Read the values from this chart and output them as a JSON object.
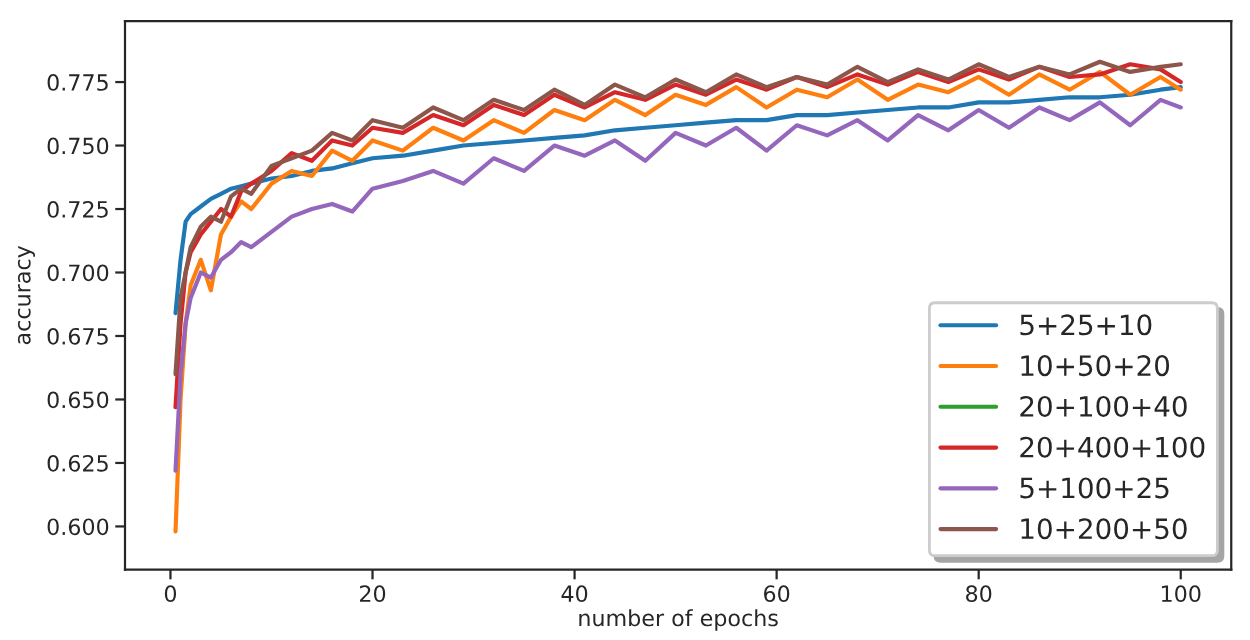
{
  "chart_data": {
    "type": "line",
    "xlabel": "number of epochs",
    "ylabel": "accuracy",
    "x": [
      0.5,
      1,
      1.5,
      2,
      3,
      4,
      5,
      6,
      7,
      8,
      10,
      12,
      14,
      16,
      18,
      20,
      23,
      26,
      29,
      32,
      35,
      38,
      41,
      44,
      47,
      50,
      53,
      56,
      59,
      62,
      65,
      68,
      71,
      74,
      77,
      80,
      83,
      86,
      89,
      92,
      95,
      98,
      100
    ],
    "series": [
      {
        "name": "5+25+10",
        "color": "#1f77b4",
        "values": [
          0.684,
          0.705,
          0.72,
          0.723,
          0.726,
          0.729,
          0.731,
          0.733,
          0.734,
          0.735,
          0.737,
          0.738,
          0.74,
          0.741,
          0.743,
          0.745,
          0.746,
          0.748,
          0.75,
          0.751,
          0.752,
          0.753,
          0.754,
          0.756,
          0.757,
          0.758,
          0.759,
          0.76,
          0.76,
          0.762,
          0.762,
          0.763,
          0.764,
          0.765,
          0.765,
          0.767,
          0.767,
          0.768,
          0.769,
          0.769,
          0.77,
          0.772,
          0.773
        ]
      },
      {
        "name": "10+50+20",
        "color": "#ff7f0e",
        "values": [
          0.598,
          0.65,
          0.68,
          0.695,
          0.705,
          0.693,
          0.715,
          0.722,
          0.728,
          0.725,
          0.735,
          0.74,
          0.738,
          0.748,
          0.744,
          0.752,
          0.748,
          0.757,
          0.752,
          0.76,
          0.755,
          0.764,
          0.76,
          0.768,
          0.762,
          0.77,
          0.766,
          0.773,
          0.765,
          0.772,
          0.769,
          0.776,
          0.768,
          0.774,
          0.771,
          0.777,
          0.77,
          0.778,
          0.772,
          0.779,
          0.77,
          0.777,
          0.772
        ]
      },
      {
        "name": "20+100+40",
        "color": "#2ca02c",
        "values": [
          null,
          null,
          null,
          null,
          null,
          null,
          null,
          null,
          null,
          null,
          null,
          null,
          null,
          null,
          null,
          null,
          null,
          null,
          null,
          null,
          null,
          null,
          null,
          null,
          null,
          null,
          null,
          null,
          null,
          null,
          null,
          null,
          null,
          null,
          null,
          null,
          null,
          null,
          null,
          null,
          null,
          null,
          null
        ]
      },
      {
        "name": "20+400+100",
        "color": "#d62728",
        "values": [
          0.647,
          0.68,
          0.7,
          0.708,
          0.715,
          0.72,
          0.725,
          0.722,
          0.732,
          0.735,
          0.74,
          0.747,
          0.744,
          0.752,
          0.75,
          0.757,
          0.755,
          0.762,
          0.758,
          0.766,
          0.762,
          0.77,
          0.765,
          0.771,
          0.768,
          0.774,
          0.77,
          0.776,
          0.772,
          0.777,
          0.773,
          0.778,
          0.774,
          0.779,
          0.775,
          0.78,
          0.776,
          0.781,
          0.777,
          0.778,
          0.782,
          0.78,
          0.775
        ]
      },
      {
        "name": "5+100+25",
        "color": "#9467bd",
        "values": [
          0.622,
          0.66,
          0.68,
          0.69,
          0.7,
          0.698,
          0.705,
          0.708,
          0.712,
          0.71,
          0.716,
          0.722,
          0.725,
          0.727,
          0.724,
          0.733,
          0.736,
          0.74,
          0.735,
          0.745,
          0.74,
          0.75,
          0.746,
          0.752,
          0.744,
          0.755,
          0.75,
          0.757,
          0.748,
          0.758,
          0.754,
          0.76,
          0.752,
          0.762,
          0.756,
          0.764,
          0.757,
          0.765,
          0.76,
          0.767,
          0.758,
          0.768,
          0.765
        ]
      },
      {
        "name": "10+200+50",
        "color": "#8c564b",
        "values": [
          0.66,
          0.69,
          0.7,
          0.71,
          0.718,
          0.722,
          0.72,
          0.73,
          0.733,
          0.731,
          0.742,
          0.745,
          0.748,
          0.755,
          0.752,
          0.76,
          0.757,
          0.765,
          0.76,
          0.768,
          0.764,
          0.772,
          0.766,
          0.774,
          0.769,
          0.776,
          0.771,
          0.778,
          0.773,
          0.777,
          0.774,
          0.781,
          0.775,
          0.78,
          0.776,
          0.782,
          0.777,
          0.781,
          0.778,
          0.783,
          0.779,
          0.781,
          0.782
        ]
      }
    ],
    "xlim": [
      -4.5,
      105
    ],
    "xticks": [
      0,
      20,
      40,
      60,
      80,
      100
    ],
    "ylim": [
      0.583,
      0.799
    ],
    "yticks": [
      {
        "value": 0.6,
        "label": "0.600"
      },
      {
        "value": 0.625,
        "label": "0.625"
      },
      {
        "value": 0.65,
        "label": "0.650"
      },
      {
        "value": 0.675,
        "label": "0.675"
      },
      {
        "value": 0.7,
        "label": "0.700"
      },
      {
        "value": 0.725,
        "label": "0.725"
      },
      {
        "value": 0.75,
        "label": "0.750"
      },
      {
        "value": 0.775,
        "label": "0.775"
      }
    ],
    "legend": "bottom right",
    "grid": false,
    "marker": "none",
    "line_style": "solid"
  }
}
